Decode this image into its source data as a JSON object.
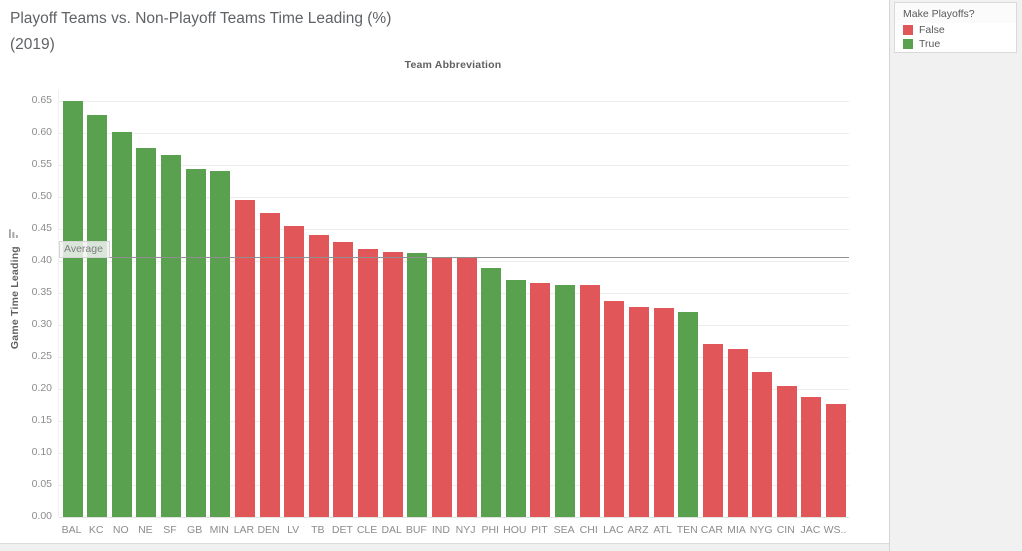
{
  "title": {
    "line1": "Playoff Teams vs. Non-Playoff Teams Time Leading (%)",
    "line2": "(2019)"
  },
  "axes": {
    "x_title": "Team Abbreviation",
    "y_title": "Game Time Leading",
    "y_ticks": [
      "0.00",
      "0.05",
      "0.10",
      "0.15",
      "0.20",
      "0.25",
      "0.30",
      "0.35",
      "0.40",
      "0.45",
      "0.50",
      "0.55",
      "0.60",
      "0.65"
    ]
  },
  "reference_line": {
    "label": "Average",
    "value": 0.406
  },
  "legend": {
    "title": "Make Playoffs?",
    "items": [
      {
        "label": "False",
        "color": "#e15759"
      },
      {
        "label": "True",
        "color": "#59a14f"
      }
    ]
  },
  "chart_data": {
    "type": "bar",
    "title": "Playoff Teams vs. Non-Playoff Teams Time Leading (%) (2019)",
    "xlabel": "Team Abbreviation",
    "ylabel": "Game Time Leading",
    "ylim": [
      0,
      0.65
    ],
    "y_tick_step": 0.05,
    "grid": true,
    "legend_position": "top-right",
    "reference_line": {
      "label": "Average",
      "value": 0.406
    },
    "categories": [
      "BAL",
      "KC",
      "NO",
      "NE",
      "SF",
      "GB",
      "MIN",
      "LAR",
      "DEN",
      "LV",
      "TB",
      "DET",
      "CLE",
      "DAL",
      "BUF",
      "IND",
      "NYJ",
      "PHI",
      "HOU",
      "PIT",
      "SEA",
      "CHI",
      "LAC",
      "ARZ",
      "ATL",
      "TEN",
      "CAR",
      "MIA",
      "NYG",
      "CIN",
      "JAC",
      "WS.."
    ],
    "series": [
      {
        "name": "Game Time Leading",
        "values": [
          0.65,
          0.628,
          0.601,
          0.577,
          0.566,
          0.544,
          0.541,
          0.496,
          0.475,
          0.455,
          0.441,
          0.43,
          0.419,
          0.414,
          0.413,
          0.407,
          0.406,
          0.389,
          0.37,
          0.366,
          0.363,
          0.362,
          0.337,
          0.328,
          0.326,
          0.321,
          0.27,
          0.263,
          0.226,
          0.205,
          0.187,
          0.177
        ]
      }
    ],
    "make_playoffs": [
      true,
      true,
      true,
      true,
      true,
      true,
      true,
      false,
      false,
      false,
      false,
      false,
      false,
      false,
      true,
      false,
      false,
      true,
      true,
      false,
      true,
      false,
      false,
      false,
      false,
      true,
      false,
      false,
      false,
      false,
      false,
      false
    ],
    "color_map": {
      "true": "#59a14f",
      "false": "#e15759"
    }
  }
}
